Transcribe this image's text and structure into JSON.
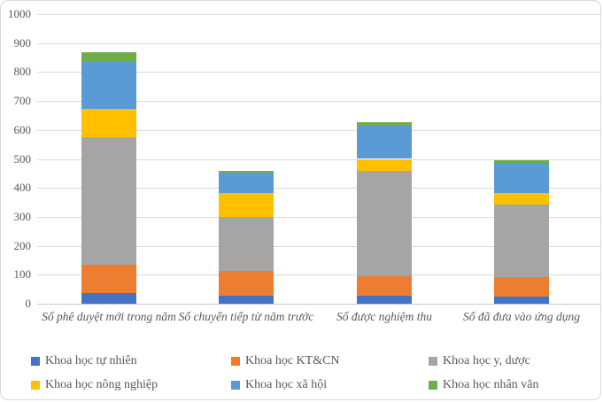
{
  "chart_data": {
    "type": "bar",
    "stacked": true,
    "title": "",
    "xlabel": "",
    "ylabel": "",
    "categories": [
      "Số phê duyệt mới trong năm",
      "Số chuyển tiếp từ năm trước",
      "Số được nghiệm thu",
      "Số đã đưa vào ứng dụng"
    ],
    "series": [
      {
        "name": "Khoa học tự nhiên",
        "color": "#4472C4",
        "values": [
          37,
          28,
          27,
          25
        ]
      },
      {
        "name": "Khoa học KT&CN",
        "color": "#ED7D31",
        "values": [
          99,
          84,
          67,
          67
        ]
      },
      {
        "name": "Khoa học y, dược",
        "color": "#A5A5A5",
        "values": [
          440,
          187,
          364,
          252
        ]
      },
      {
        "name": "Khoa học nông nghiệp",
        "color": "#FFC000",
        "values": [
          96,
          83,
          42,
          38
        ]
      },
      {
        "name": "Khoa học xã hội",
        "color": "#5B9BD5",
        "values": [
          166,
          71,
          114,
          104
        ]
      },
      {
        "name": "Khoa học nhân văn",
        "color": "#70AD47",
        "values": [
          30,
          6,
          12,
          9
        ]
      }
    ],
    "totals": [
      868,
      459,
      626,
      495
    ],
    "ylim": [
      0,
      1000
    ],
    "ytick_step": 100,
    "grid": true,
    "legend_position": "bottom",
    "colors": {
      "gridline": "#d9d9d9",
      "axis_text": "#595959",
      "border": "#d9d9d9",
      "background": "#ffffff"
    }
  }
}
